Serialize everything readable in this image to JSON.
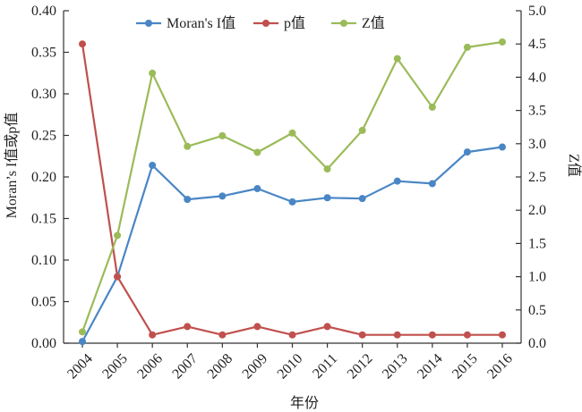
{
  "chart_data": {
    "type": "line",
    "x": [
      "2004",
      "2005",
      "2006",
      "2007",
      "2008",
      "2009",
      "2010",
      "2011",
      "2012",
      "2013",
      "2014",
      "2015",
      "2016"
    ],
    "xlabel": "年份",
    "ylabel_left": "Moran’s I值或p值",
    "ylabel_right": "Z值",
    "ylim_left": [
      0,
      0.4
    ],
    "ylim_right": [
      0,
      5.0
    ],
    "yticks_left": [
      "0.00",
      "0.05",
      "0.10",
      "0.15",
      "0.20",
      "0.25",
      "0.30",
      "0.35",
      "0.40"
    ],
    "yticks_right": [
      "0.0",
      "0.5",
      "1.0",
      "1.5",
      "2.0",
      "2.5",
      "3.0",
      "3.5",
      "4.0",
      "4.5",
      "5.0"
    ],
    "grid": false,
    "legend_position": "top-center",
    "series": [
      {
        "name": "Moran's I值",
        "axis": "left",
        "color": "#4a86c5",
        "values": [
          0.002,
          0.08,
          0.214,
          0.173,
          0.177,
          0.186,
          0.17,
          0.175,
          0.174,
          0.195,
          0.192,
          0.23,
          0.236
        ]
      },
      {
        "name": "p值",
        "axis": "left",
        "color": "#c0504d",
        "values": [
          0.36,
          0.08,
          0.01,
          0.02,
          0.01,
          0.02,
          0.01,
          0.02,
          0.01,
          0.01,
          0.01,
          0.01,
          0.01
        ]
      },
      {
        "name": "Z值",
        "axis": "right",
        "color": "#9bbb59",
        "values": [
          0.17,
          1.62,
          4.06,
          2.96,
          3.12,
          2.87,
          3.16,
          2.62,
          3.2,
          4.28,
          3.55,
          4.45,
          4.53
        ]
      }
    ]
  }
}
